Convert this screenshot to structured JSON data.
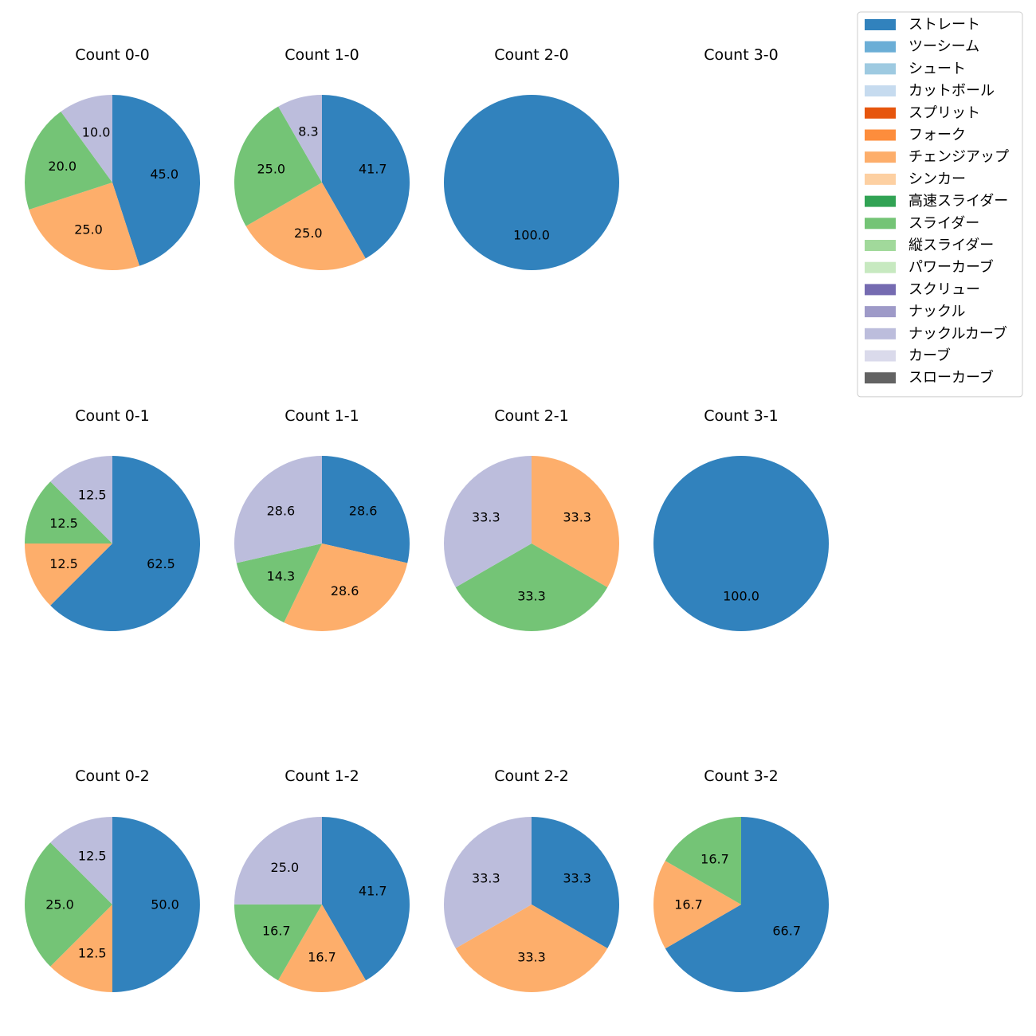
{
  "chart_data": {
    "type": "pie",
    "legend": {
      "placement": "top-right",
      "entries": [
        {
          "name": "ストレート",
          "color": "#3182bd"
        },
        {
          "name": "ツーシーム",
          "color": "#6baed6"
        },
        {
          "name": "シュート",
          "color": "#9ecae1"
        },
        {
          "name": "カットボール",
          "color": "#c6dbef"
        },
        {
          "name": "スプリット",
          "color": "#e6550d"
        },
        {
          "name": "フォーク",
          "color": "#fd8d3c"
        },
        {
          "name": "チェンジアップ",
          "color": "#fdae6b"
        },
        {
          "name": "シンカー",
          "color": "#fdd0a2"
        },
        {
          "name": "高速スライダー",
          "color": "#31a354"
        },
        {
          "name": "スライダー",
          "color": "#74c476"
        },
        {
          "name": "縦スライダー",
          "color": "#a1d99b"
        },
        {
          "name": "パワーカーブ",
          "color": "#c7e9c0"
        },
        {
          "name": "スクリュー",
          "color": "#756bb1"
        },
        {
          "name": "ナックル",
          "color": "#9e9ac8"
        },
        {
          "name": "ナックルカーブ",
          "color": "#bcbddc"
        },
        {
          "name": "カーブ",
          "color": "#dadaeb"
        },
        {
          "name": "スローカーブ",
          "color": "#636363"
        }
      ]
    },
    "panels": [
      {
        "title": "Count 0-0",
        "slices": [
          {
            "category": "ストレート",
            "value": 45.0,
            "label": "45.0"
          },
          {
            "category": "チェンジアップ",
            "value": 25.0,
            "label": "25.0"
          },
          {
            "category": "スライダー",
            "value": 20.0,
            "label": "20.0"
          },
          {
            "category": "ナックルカーブ",
            "value": 10.0,
            "label": "10.0"
          }
        ]
      },
      {
        "title": "Count 1-0",
        "slices": [
          {
            "category": "ストレート",
            "value": 41.7,
            "label": "41.7"
          },
          {
            "category": "チェンジアップ",
            "value": 25.0,
            "label": "25.0"
          },
          {
            "category": "スライダー",
            "value": 25.0,
            "label": "25.0"
          },
          {
            "category": "ナックルカーブ",
            "value": 8.3,
            "label": "8.3"
          }
        ]
      },
      {
        "title": "Count 2-0",
        "slices": [
          {
            "category": "ストレート",
            "value": 100.0,
            "label": "100.0"
          }
        ]
      },
      {
        "title": "Count 3-0",
        "slices": []
      },
      {
        "title": "Count 0-1",
        "slices": [
          {
            "category": "ストレート",
            "value": 62.5,
            "label": "62.5"
          },
          {
            "category": "チェンジアップ",
            "value": 12.5,
            "label": "12.5"
          },
          {
            "category": "スライダー",
            "value": 12.5,
            "label": "12.5"
          },
          {
            "category": "ナックルカーブ",
            "value": 12.5,
            "label": "12.5"
          }
        ]
      },
      {
        "title": "Count 1-1",
        "slices": [
          {
            "category": "ストレート",
            "value": 28.6,
            "label": "28.6"
          },
          {
            "category": "チェンジアップ",
            "value": 28.6,
            "label": "28.6"
          },
          {
            "category": "スライダー",
            "value": 14.3,
            "label": "14.3"
          },
          {
            "category": "ナックルカーブ",
            "value": 28.6,
            "label": "28.6"
          }
        ]
      },
      {
        "title": "Count 2-1",
        "slices": [
          {
            "category": "チェンジアップ",
            "value": 33.3,
            "label": "33.3"
          },
          {
            "category": "スライダー",
            "value": 33.3,
            "label": "33.3"
          },
          {
            "category": "ナックルカーブ",
            "value": 33.3,
            "label": "33.3"
          }
        ]
      },
      {
        "title": "Count 3-1",
        "slices": [
          {
            "category": "ストレート",
            "value": 100.0,
            "label": "100.0"
          }
        ]
      },
      {
        "title": "Count 0-2",
        "slices": [
          {
            "category": "ストレート",
            "value": 50.0,
            "label": "50.0"
          },
          {
            "category": "チェンジアップ",
            "value": 12.5,
            "label": "12.5"
          },
          {
            "category": "スライダー",
            "value": 25.0,
            "label": "25.0"
          },
          {
            "category": "ナックルカーブ",
            "value": 12.5,
            "label": "12.5"
          }
        ]
      },
      {
        "title": "Count 1-2",
        "slices": [
          {
            "category": "ストレート",
            "value": 41.7,
            "label": "41.7"
          },
          {
            "category": "チェンジアップ",
            "value": 16.7,
            "label": "16.7"
          },
          {
            "category": "スライダー",
            "value": 16.7,
            "label": "16.7"
          },
          {
            "category": "ナックルカーブ",
            "value": 25.0,
            "label": "25.0"
          }
        ]
      },
      {
        "title": "Count 2-2",
        "slices": [
          {
            "category": "ストレート",
            "value": 33.3,
            "label": "33.3"
          },
          {
            "category": "チェンジアップ",
            "value": 33.3,
            "label": "33.3"
          },
          {
            "category": "ナックルカーブ",
            "value": 33.3,
            "label": "33.3"
          }
        ]
      },
      {
        "title": "Count 3-2",
        "slices": [
          {
            "category": "ストレート",
            "value": 66.7,
            "label": "66.7"
          },
          {
            "category": "チェンジアップ",
            "value": 16.7,
            "label": "16.7"
          },
          {
            "category": "スライダー",
            "value": 16.7,
            "label": "16.7"
          }
        ]
      }
    ]
  }
}
